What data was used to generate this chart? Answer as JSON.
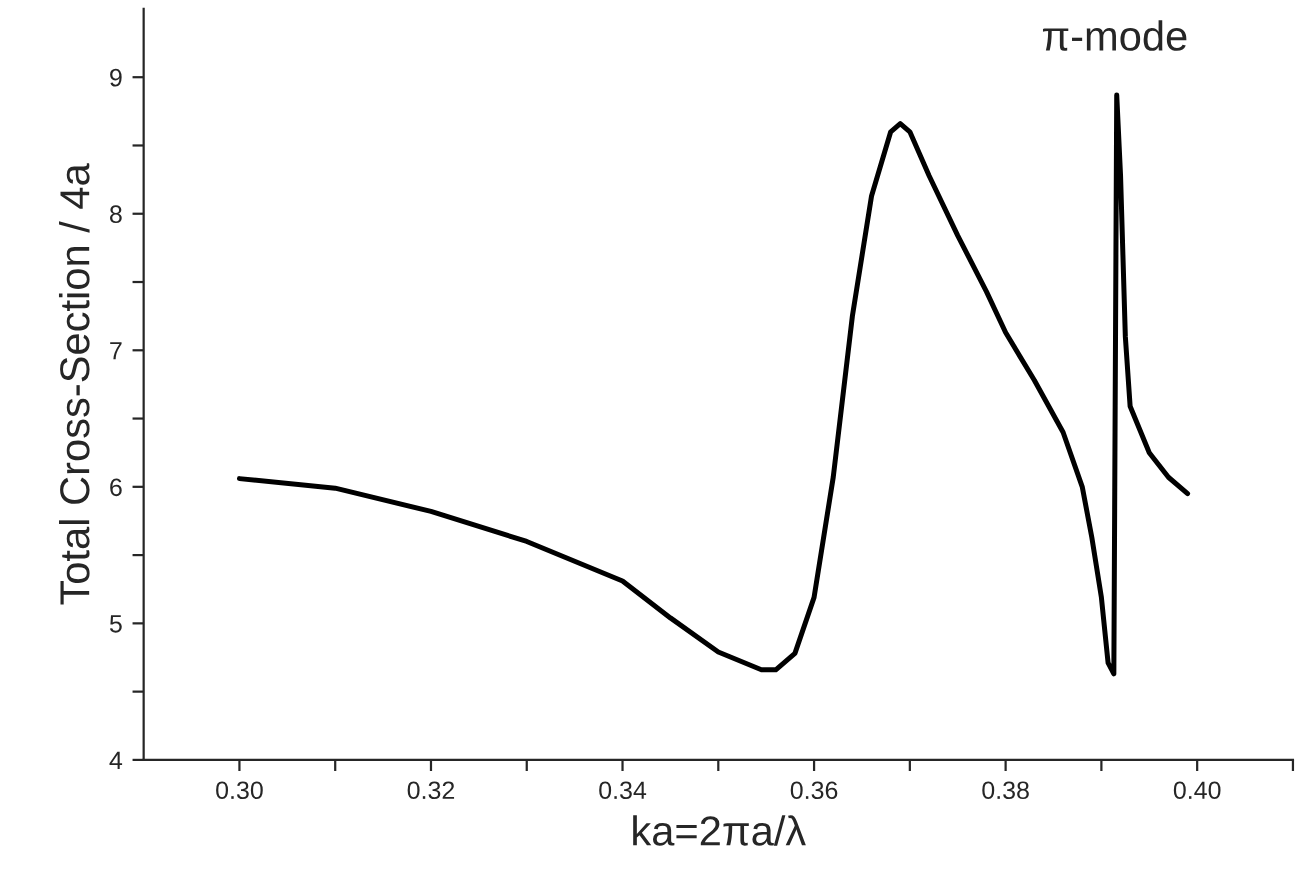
{
  "chart_data": {
    "type": "line",
    "xlabel": "ka=2πa/λ",
    "ylabel": "Total Cross-Section / 4a",
    "xlim": [
      0.29,
      0.41
    ],
    "ylim": [
      4,
      9.5
    ],
    "xticks": [
      {
        "value": 0.3,
        "label": "0.30"
      },
      {
        "value": 0.31,
        "label": null
      },
      {
        "value": 0.32,
        "label": "0.32"
      },
      {
        "value": 0.33,
        "label": null
      },
      {
        "value": 0.34,
        "label": "0.34"
      },
      {
        "value": 0.35,
        "label": null
      },
      {
        "value": 0.36,
        "label": "0.36"
      },
      {
        "value": 0.37,
        "label": null
      },
      {
        "value": 0.38,
        "label": "0.38"
      },
      {
        "value": 0.39,
        "label": null
      },
      {
        "value": 0.4,
        "label": "0.40"
      },
      {
        "value": 0.41,
        "label": null
      }
    ],
    "yticks": [
      4,
      {
        "value": 4.5,
        "label": null
      },
      5,
      {
        "value": 5.5,
        "label": null
      },
      6,
      {
        "value": 6.5,
        "label": null
      },
      7,
      {
        "value": 7.5,
        "label": null
      },
      8,
      {
        "value": 8.5,
        "label": null
      },
      9
    ],
    "grid": false,
    "marker": "none",
    "line_style": "solid",
    "annotations": [
      "π-mode"
    ],
    "series": [
      {
        "color": "#000000",
        "x": [
          0.3,
          0.31,
          0.32,
          0.33,
          0.34,
          0.345,
          0.35,
          0.3545,
          0.356,
          0.358,
          0.36,
          0.362,
          0.364,
          0.366,
          0.368,
          0.369,
          0.37,
          0.372,
          0.375,
          0.378,
          0.38,
          0.383,
          0.386,
          0.388,
          0.389,
          0.39,
          0.3907,
          0.3913,
          0.3916,
          0.392,
          0.3925,
          0.393,
          0.395,
          0.397,
          0.399
        ],
        "values": [
          6.06,
          5.99,
          5.82,
          5.6,
          5.31,
          5.04,
          4.79,
          4.66,
          4.66,
          4.78,
          5.19,
          6.07,
          7.25,
          8.13,
          8.6,
          8.66,
          8.6,
          8.28,
          7.84,
          7.43,
          7.13,
          6.78,
          6.4,
          6.0,
          5.63,
          5.19,
          4.71,
          4.63,
          8.87,
          8.28,
          7.1,
          6.59,
          6.25,
          6.07,
          5.95
        ]
      }
    ]
  }
}
